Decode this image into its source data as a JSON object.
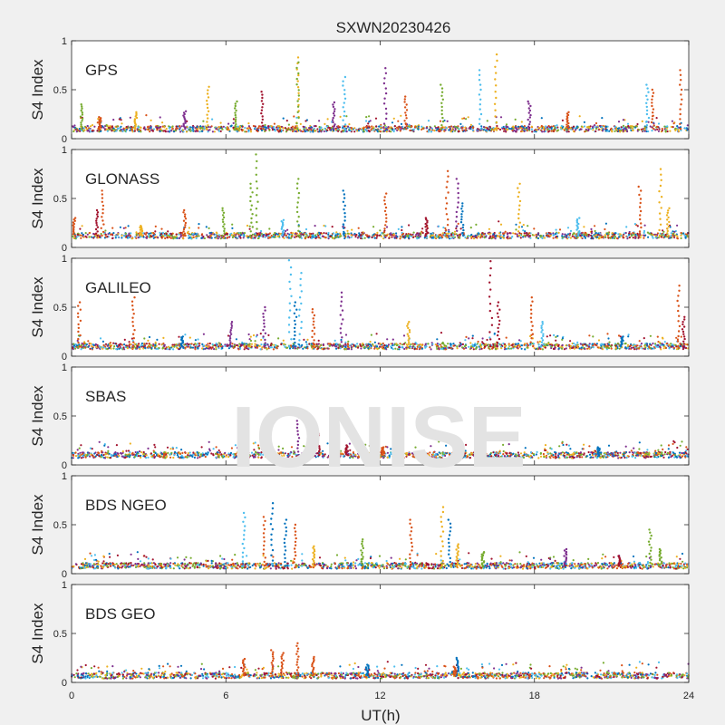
{
  "chart_data": {
    "type": "scatter",
    "title": "SXWN20230426",
    "xlabel": "UT(h)",
    "ylabel": "S4 Index",
    "xlim": [
      0,
      24
    ],
    "ylim": [
      0,
      1
    ],
    "xticks": [
      "0",
      "6",
      "12",
      "18",
      "24"
    ],
    "yticks": [
      "0",
      "0.5",
      "1"
    ],
    "grid": false,
    "watermark": "IONISE",
    "series_colors": [
      "#0072BD",
      "#D95319",
      "#EDB120",
      "#7E2F8E",
      "#77AC30",
      "#4DBEEE",
      "#A2142F"
    ],
    "panels": [
      {
        "name": "GPS",
        "baseline": 0.1,
        "spikes": [
          {
            "x": 0.4,
            "y": 0.35,
            "c": 4
          },
          {
            "x": 1.1,
            "y": 0.22,
            "c": 1
          },
          {
            "x": 2.5,
            "y": 0.27,
            "c": 2
          },
          {
            "x": 4.4,
            "y": 0.28,
            "c": 3
          },
          {
            "x": 5.3,
            "y": 0.53,
            "c": 2
          },
          {
            "x": 6.4,
            "y": 0.38,
            "c": 4
          },
          {
            "x": 7.4,
            "y": 0.48,
            "c": 6
          },
          {
            "x": 8.8,
            "y": 0.83,
            "c": 2
          },
          {
            "x": 8.8,
            "y": 0.78,
            "c": 4
          },
          {
            "x": 10.2,
            "y": 0.37,
            "c": 3
          },
          {
            "x": 10.6,
            "y": 0.63,
            "c": 5
          },
          {
            "x": 12.2,
            "y": 0.72,
            "c": 3
          },
          {
            "x": 13.0,
            "y": 0.43,
            "c": 1
          },
          {
            "x": 14.4,
            "y": 0.55,
            "c": 4
          },
          {
            "x": 15.9,
            "y": 0.7,
            "c": 5
          },
          {
            "x": 16.5,
            "y": 0.86,
            "c": 2
          },
          {
            "x": 17.8,
            "y": 0.38,
            "c": 3
          },
          {
            "x": 19.3,
            "y": 0.27,
            "c": 1
          },
          {
            "x": 22.4,
            "y": 0.55,
            "c": 5
          },
          {
            "x": 22.6,
            "y": 0.5,
            "c": 1
          },
          {
            "x": 23.7,
            "y": 0.7,
            "c": 1
          }
        ]
      },
      {
        "name": "GLONASS",
        "baseline": 0.12,
        "spikes": [
          {
            "x": 0.1,
            "y": 0.3,
            "c": 1
          },
          {
            "x": 1.2,
            "y": 0.58,
            "c": 1
          },
          {
            "x": 1.0,
            "y": 0.38,
            "c": 6
          },
          {
            "x": 2.7,
            "y": 0.22,
            "c": 2
          },
          {
            "x": 4.4,
            "y": 0.38,
            "c": 1
          },
          {
            "x": 5.9,
            "y": 0.4,
            "c": 4
          },
          {
            "x": 7.2,
            "y": 0.95,
            "c": 4
          },
          {
            "x": 7.0,
            "y": 0.65,
            "c": 4
          },
          {
            "x": 8.2,
            "y": 0.28,
            "c": 5
          },
          {
            "x": 8.8,
            "y": 0.7,
            "c": 4
          },
          {
            "x": 10.6,
            "y": 0.58,
            "c": 0
          },
          {
            "x": 12.2,
            "y": 0.55,
            "c": 1
          },
          {
            "x": 13.8,
            "y": 0.3,
            "c": 6
          },
          {
            "x": 14.6,
            "y": 0.78,
            "c": 1
          },
          {
            "x": 15.0,
            "y": 0.7,
            "c": 3
          },
          {
            "x": 15.2,
            "y": 0.45,
            "c": 0
          },
          {
            "x": 17.4,
            "y": 0.65,
            "c": 2
          },
          {
            "x": 19.7,
            "y": 0.3,
            "c": 5
          },
          {
            "x": 22.1,
            "y": 0.62,
            "c": 1
          },
          {
            "x": 22.9,
            "y": 0.8,
            "c": 2
          },
          {
            "x": 23.2,
            "y": 0.4,
            "c": 2
          }
        ]
      },
      {
        "name": "GALILEO",
        "baseline": 0.1,
        "spikes": [
          {
            "x": 0.3,
            "y": 0.55,
            "c": 1
          },
          {
            "x": 2.4,
            "y": 0.6,
            "c": 1
          },
          {
            "x": 4.3,
            "y": 0.2,
            "c": 0
          },
          {
            "x": 6.2,
            "y": 0.35,
            "c": 3
          },
          {
            "x": 7.5,
            "y": 0.5,
            "c": 3
          },
          {
            "x": 8.5,
            "y": 0.98,
            "c": 5
          },
          {
            "x": 8.9,
            "y": 0.85,
            "c": 5
          },
          {
            "x": 8.7,
            "y": 0.55,
            "c": 0
          },
          {
            "x": 9.4,
            "y": 0.48,
            "c": 1
          },
          {
            "x": 10.5,
            "y": 0.65,
            "c": 3
          },
          {
            "x": 13.1,
            "y": 0.35,
            "c": 2
          },
          {
            "x": 16.3,
            "y": 0.97,
            "c": 6
          },
          {
            "x": 16.6,
            "y": 0.55,
            "c": 6
          },
          {
            "x": 17.9,
            "y": 0.6,
            "c": 1
          },
          {
            "x": 18.3,
            "y": 0.35,
            "c": 5
          },
          {
            "x": 21.4,
            "y": 0.2,
            "c": 0
          },
          {
            "x": 23.6,
            "y": 0.72,
            "c": 1
          },
          {
            "x": 23.8,
            "y": 0.4,
            "c": 6
          }
        ]
      },
      {
        "name": "SBAS",
        "baseline": 0.1,
        "spikes": [
          {
            "x": 8.8,
            "y": 0.52,
            "c": 3
          },
          {
            "x": 9.6,
            "y": 0.32,
            "c": 6
          },
          {
            "x": 10.7,
            "y": 0.2,
            "c": 6
          },
          {
            "x": 12.1,
            "y": 0.18,
            "c": 1
          },
          {
            "x": 15.0,
            "y": 0.16,
            "c": 6
          },
          {
            "x": 20.5,
            "y": 0.18,
            "c": 0
          }
        ]
      },
      {
        "name": "BDS NGEO",
        "baseline": 0.08,
        "spikes": [
          {
            "x": 6.7,
            "y": 0.62,
            "c": 5
          },
          {
            "x": 7.5,
            "y": 0.58,
            "c": 1
          },
          {
            "x": 7.8,
            "y": 0.72,
            "c": 0
          },
          {
            "x": 8.3,
            "y": 0.55,
            "c": 0
          },
          {
            "x": 8.7,
            "y": 0.5,
            "c": 1
          },
          {
            "x": 9.4,
            "y": 0.28,
            "c": 2
          },
          {
            "x": 11.3,
            "y": 0.35,
            "c": 4
          },
          {
            "x": 13.2,
            "y": 0.55,
            "c": 1
          },
          {
            "x": 14.4,
            "y": 0.68,
            "c": 2
          },
          {
            "x": 14.7,
            "y": 0.55,
            "c": 0
          },
          {
            "x": 15.0,
            "y": 0.3,
            "c": 2
          },
          {
            "x": 16.0,
            "y": 0.22,
            "c": 4
          },
          {
            "x": 19.2,
            "y": 0.25,
            "c": 3
          },
          {
            "x": 21.3,
            "y": 0.18,
            "c": 6
          },
          {
            "x": 22.5,
            "y": 0.45,
            "c": 4
          },
          {
            "x": 22.9,
            "y": 0.25,
            "c": 4
          }
        ]
      },
      {
        "name": "BDS GEO",
        "baseline": 0.07,
        "spikes": [
          {
            "x": 6.7,
            "y": 0.24,
            "c": 1
          },
          {
            "x": 7.8,
            "y": 0.33,
            "c": 1
          },
          {
            "x": 8.2,
            "y": 0.3,
            "c": 1
          },
          {
            "x": 8.8,
            "y": 0.4,
            "c": 1
          },
          {
            "x": 9.4,
            "y": 0.26,
            "c": 1
          },
          {
            "x": 11.5,
            "y": 0.18,
            "c": 0
          },
          {
            "x": 15.0,
            "y": 0.25,
            "c": 0
          },
          {
            "x": 14.9,
            "y": 0.16,
            "c": 1
          }
        ]
      }
    ]
  }
}
